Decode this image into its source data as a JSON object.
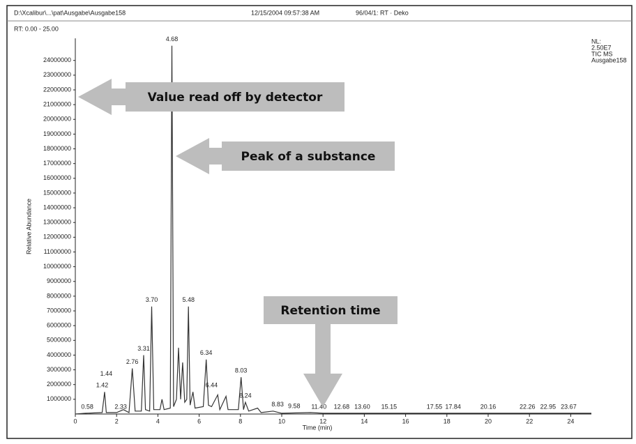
{
  "chart_data": {
    "type": "line",
    "file_path": "D:\\Xcalibur\\...\\pat\\Ausgabe\\Ausgabe158",
    "timestamp": "12/15/2004 09:57:38 AM",
    "info": "96/04/1: RT · Deko",
    "range_label": "RT: 0.00 - 25.00",
    "legend_info": [
      "NL:",
      "2.50E7",
      "TIC MS",
      "Ausgabe158"
    ],
    "x_label": "Time (min)",
    "y_label": "Relative Abundance",
    "xlim": [
      0,
      25
    ],
    "ylim": [
      0,
      25500000
    ],
    "xticks": [
      0,
      2,
      4,
      6,
      8,
      10,
      12,
      14,
      16,
      18,
      20,
      22,
      24
    ],
    "yticks": [
      1000000,
      2000000,
      3000000,
      4000000,
      5000000,
      6000000,
      7000000,
      8000000,
      9000000,
      10000000,
      11000000,
      12000000,
      13000000,
      14000000,
      15000000,
      16000000,
      17000000,
      18000000,
      19000000,
      20000000,
      21000000,
      22000000,
      23000000,
      24000000
    ],
    "color": "#333333",
    "x": [
      0,
      0.5,
      1.3,
      1.42,
      1.5,
      2.0,
      2.33,
      2.6,
      2.76,
      2.9,
      3.2,
      3.31,
      3.4,
      3.6,
      3.7,
      3.8,
      4.1,
      4.2,
      4.3,
      4.6,
      4.68,
      4.76,
      4.9,
      5.0,
      5.1,
      5.2,
      5.3,
      5.4,
      5.48,
      5.56,
      5.7,
      5.8,
      6.2,
      6.34,
      6.45,
      6.6,
      6.9,
      7.0,
      7.3,
      7.4,
      7.9,
      8.03,
      8.15,
      8.24,
      8.4,
      8.83,
      9,
      9.58,
      10,
      11.4,
      12,
      14,
      16,
      18,
      20,
      22,
      24,
      25
    ],
    "values": [
      0,
      50000,
      100000,
      1500000,
      100000,
      100000,
      300000,
      100000,
      3100000,
      200000,
      200000,
      4000000,
      300000,
      200000,
      7300000,
      300000,
      300000,
      1000000,
      300000,
      400000,
      25000000,
      500000,
      1000000,
      4500000,
      1000000,
      3500000,
      800000,
      1000000,
      7300000,
      600000,
      1500000,
      400000,
      500000,
      3700000,
      600000,
      500000,
      1300000,
      300000,
      1200000,
      300000,
      300000,
      2500000,
      300000,
      800000,
      200000,
      400000,
      100000,
      200000,
      50000,
      100000,
      50000,
      50000,
      50000,
      50000,
      50000,
      50000,
      50000,
      50000
    ],
    "peaks": [
      {
        "x": 0.58,
        "y": 50000,
        "label": "0.58"
      },
      {
        "x": 1.3,
        "y": 1500000,
        "label": "1.42"
      },
      {
        "x": 1.5,
        "y": 2300000,
        "label": "1.44"
      },
      {
        "x": 2.2,
        "y": 50000,
        "label": "2.33"
      },
      {
        "x": 2.76,
        "y": 3100000,
        "label": "2.76"
      },
      {
        "x": 3.31,
        "y": 4000000,
        "label": "3.31"
      },
      {
        "x": 3.7,
        "y": 7300000,
        "label": "3.70"
      },
      {
        "x": 4.68,
        "y": 25000000,
        "label": "4.68"
      },
      {
        "x": 5.48,
        "y": 7300000,
        "label": "5.48"
      },
      {
        "x": 6.34,
        "y": 3700000,
        "label": "6.34"
      },
      {
        "x": 6.6,
        "y": 1500000,
        "label": "6.44"
      },
      {
        "x": 8.03,
        "y": 2500000,
        "label": "8.03"
      },
      {
        "x": 8.24,
        "y": 800000,
        "label": "8.24"
      },
      {
        "x": 9.8,
        "y": 200000,
        "label": "8.83"
      },
      {
        "x": 10.6,
        "y": 100000,
        "label": "9.58"
      },
      {
        "x": 11.8,
        "y": 50000,
        "label": "11.40"
      },
      {
        "x": 12.9,
        "y": 50000,
        "label": "12.68"
      },
      {
        "x": 13.9,
        "y": 50000,
        "label": "13.60"
      },
      {
        "x": 15.2,
        "y": 50000,
        "label": "15.15"
      },
      {
        "x": 17.4,
        "y": 50000,
        "label": "17.55"
      },
      {
        "x": 18.3,
        "y": 50000,
        "label": "17.84"
      },
      {
        "x": 20.0,
        "y": 50000,
        "label": "20.16"
      },
      {
        "x": 21.9,
        "y": 50000,
        "label": "22.26"
      },
      {
        "x": 22.9,
        "y": 50000,
        "label": "22.95"
      },
      {
        "x": 23.9,
        "y": 50000,
        "label": "23.67"
      }
    ],
    "annotations": [
      "Value read off by detector",
      "Peak of a substance",
      "Retention time"
    ]
  }
}
